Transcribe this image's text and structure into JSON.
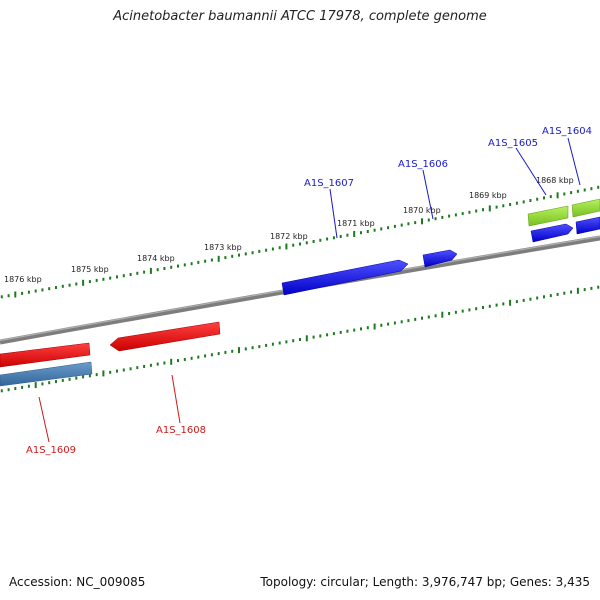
{
  "title": "Acinetobacter baumannii ATCC 17978, complete genome",
  "footer": {
    "accession": "Accession: NC_009085",
    "summary": "Topology: circular; Length: 3,976,747 bp; Genes: 3,435"
  },
  "colors": {
    "backbone": "#7a7a7a",
    "tick": "#1e7a1e",
    "forward_gene": "#1a1aee",
    "forward_gene_alt": "#99e033",
    "reverse_gene": "#ee1a1a",
    "reverse_gene_alt": "#4a82b8",
    "forward_label": "#1a1acc",
    "reverse_label": "#cc1a1a"
  },
  "upper_ticks": [
    {
      "label": "1876 kbp"
    },
    {
      "label": "1875 kbp"
    },
    {
      "label": "1874 kbp"
    },
    {
      "label": "1873 kbp"
    },
    {
      "label": "1872 kbp"
    },
    {
      "label": "1871 kbp"
    },
    {
      "label": "1870 kbp"
    },
    {
      "label": "1869 kbp"
    },
    {
      "label": "1868 kbp"
    }
  ],
  "forward_genes": [
    {
      "name": "A1S_1607"
    },
    {
      "name": "A1S_1606"
    },
    {
      "name": "A1S_1605"
    },
    {
      "name": "A1S_1604"
    }
  ],
  "reverse_genes": [
    {
      "name": "A1S_1609"
    },
    {
      "name": "A1S_1608"
    }
  ]
}
